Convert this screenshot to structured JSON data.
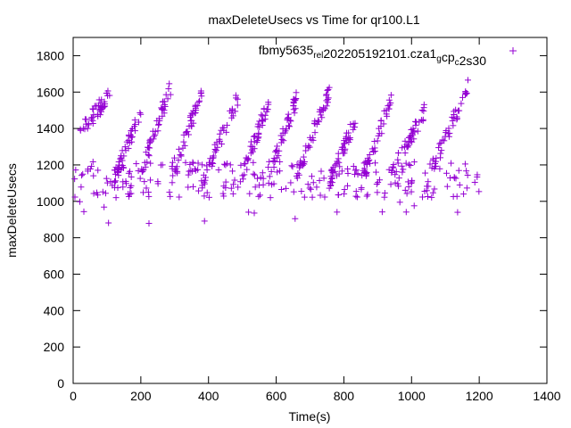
{
  "chart_data": {
    "type": "scatter",
    "title": "maxDeleteUsecs vs Time for qr100.L1",
    "xlabel": "Time(s)",
    "ylabel": "maxDeleteUsecs",
    "xlim": [
      0,
      1400
    ],
    "ylim": [
      0,
      1900
    ],
    "x_ticks": [
      "0",
      "200",
      "400",
      "600",
      "800",
      "1000",
      "1200",
      "1400"
    ],
    "y_ticks": [
      "0",
      "200",
      "400",
      "600",
      "800",
      "1000",
      "1200",
      "1400",
      "1600",
      "1800"
    ],
    "grid": false,
    "legend_position": "top-right",
    "marker": "+",
    "series": [
      {
        "name_segments": [
          {
            "text": "fbmy5635",
            "sub": false
          },
          {
            "text": "rel",
            "sub": true
          },
          {
            "text": "2",
            "sub": false
          },
          {
            "text": "02205192101.cza1",
            "sub": false
          },
          {
            "text": "g",
            "sub": true
          },
          {
            "text": "cp",
            "sub": false
          },
          {
            "text": "c",
            "sub": true
          },
          {
            "text": "2s30",
            "sub": false
          }
        ],
        "color": "#9400d3",
        "ramp_model": {
          "note": "sawtooth groups: [start_time, end_time, start_value, end_value]",
          "ramps": [
            [
              20,
              110,
              1380,
              1590
            ],
            [
              115,
              200,
              1100,
              1480
            ],
            [
              200,
              290,
              1150,
              1640
            ],
            [
              290,
              380,
              1150,
              1590
            ],
            [
              380,
              490,
              1100,
              1580
            ],
            [
              500,
              580,
              1150,
              1560
            ],
            [
              580,
              660,
              1150,
              1560
            ],
            [
              660,
              760,
              1140,
              1620
            ],
            [
              760,
              840,
              1120,
              1480
            ],
            [
              850,
              940,
              1100,
              1560
            ],
            [
              940,
              1040,
              1150,
              1500
            ],
            [
              1060,
              1170,
              1180,
              1640
            ]
          ],
          "baseline_value": 1120,
          "baseline_spread": 100,
          "x_range": [
            0,
            1200
          ],
          "points_per_ramp": 45,
          "baseline_points": 260
        }
      }
    ]
  }
}
